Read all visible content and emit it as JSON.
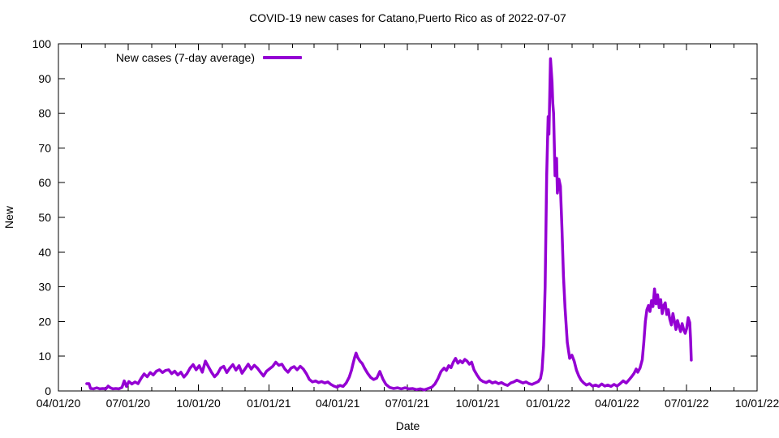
{
  "chart": {
    "title": "COVID-19 new cases for Catano,Puerto Rico as of 2022-07-07",
    "xlabel": "Date",
    "ylabel": "New",
    "legend_label": "New cases (7-day average)"
  },
  "chart_data": {
    "type": "line",
    "title": "COVID-19 new cases for Catano,Puerto Rico as of 2022-07-07",
    "xlabel": "Date",
    "ylabel": "New",
    "ylim": [
      0,
      100
    ],
    "xlim": [
      "2020-04-01",
      "2022-10-01"
    ],
    "grid": false,
    "y_ticks": [
      0,
      10,
      20,
      30,
      40,
      50,
      60,
      70,
      80,
      90,
      100
    ],
    "x_tick_labels": [
      "04/01/20",
      "07/01/20",
      "10/01/20",
      "01/01/21",
      "04/01/21",
      "07/01/21",
      "10/01/21",
      "01/01/22",
      "04/01/22",
      "07/01/22",
      "10/01/22"
    ],
    "x_minor_ticks": "monthly",
    "legend": {
      "position": "top-left",
      "entries": [
        {
          "label": "New cases (7-day average)",
          "color": "#9400D3"
        }
      ]
    },
    "series": [
      {
        "name": "New cases (7-day average)",
        "color": "#9400D3",
        "points": [
          [
            "2020-05-08",
            2.1
          ],
          [
            "2020-05-11",
            2.1
          ],
          [
            "2020-05-13",
            0.7
          ],
          [
            "2020-05-17",
            0.6
          ],
          [
            "2020-05-21",
            0.9
          ],
          [
            "2020-05-25",
            0.6
          ],
          [
            "2020-05-29",
            0.7
          ],
          [
            "2020-06-02",
            0.6
          ],
          [
            "2020-06-05",
            1.4
          ],
          [
            "2020-06-08",
            0.9
          ],
          [
            "2020-06-11",
            0.6
          ],
          [
            "2020-06-15",
            0.7
          ],
          [
            "2020-06-19",
            0.6
          ],
          [
            "2020-06-23",
            1.0
          ],
          [
            "2020-06-26",
            2.9
          ],
          [
            "2020-06-29",
            1.3
          ],
          [
            "2020-07-02",
            2.7
          ],
          [
            "2020-07-06",
            2.0
          ],
          [
            "2020-07-10",
            2.6
          ],
          [
            "2020-07-14",
            2.1
          ],
          [
            "2020-07-18",
            3.6
          ],
          [
            "2020-07-22",
            4.9
          ],
          [
            "2020-07-26",
            4.1
          ],
          [
            "2020-07-30",
            5.3
          ],
          [
            "2020-08-03",
            4.6
          ],
          [
            "2020-08-07",
            5.7
          ],
          [
            "2020-08-11",
            6.1
          ],
          [
            "2020-08-15",
            5.3
          ],
          [
            "2020-08-19",
            5.9
          ],
          [
            "2020-08-23",
            6.1
          ],
          [
            "2020-08-27",
            5.0
          ],
          [
            "2020-08-31",
            5.7
          ],
          [
            "2020-09-04",
            4.6
          ],
          [
            "2020-09-08",
            5.4
          ],
          [
            "2020-09-12",
            4.0
          ],
          [
            "2020-09-16",
            5.0
          ],
          [
            "2020-09-20",
            6.6
          ],
          [
            "2020-09-24",
            7.6
          ],
          [
            "2020-09-28",
            6.1
          ],
          [
            "2020-10-02",
            7.3
          ],
          [
            "2020-10-06",
            5.4
          ],
          [
            "2020-10-10",
            8.6
          ],
          [
            "2020-10-14",
            7.0
          ],
          [
            "2020-10-18",
            5.4
          ],
          [
            "2020-10-22",
            4.1
          ],
          [
            "2020-10-26",
            5.0
          ],
          [
            "2020-10-30",
            6.6
          ],
          [
            "2020-11-03",
            7.1
          ],
          [
            "2020-11-07",
            5.3
          ],
          [
            "2020-11-11",
            6.6
          ],
          [
            "2020-11-15",
            7.6
          ],
          [
            "2020-11-19",
            6.0
          ],
          [
            "2020-11-23",
            7.3
          ],
          [
            "2020-11-27",
            5.1
          ],
          [
            "2020-12-01",
            6.4
          ],
          [
            "2020-12-05",
            7.7
          ],
          [
            "2020-12-09",
            6.3
          ],
          [
            "2020-12-13",
            7.4
          ],
          [
            "2020-12-17",
            6.6
          ],
          [
            "2020-12-21",
            5.4
          ],
          [
            "2020-12-25",
            4.3
          ],
          [
            "2020-12-29",
            5.7
          ],
          [
            "2021-01-02",
            6.4
          ],
          [
            "2021-01-06",
            7.1
          ],
          [
            "2021-01-10",
            8.3
          ],
          [
            "2021-01-14",
            7.4
          ],
          [
            "2021-01-18",
            7.7
          ],
          [
            "2021-01-22",
            6.3
          ],
          [
            "2021-01-26",
            5.4
          ],
          [
            "2021-01-30",
            6.6
          ],
          [
            "2021-02-03",
            7.0
          ],
          [
            "2021-02-07",
            6.1
          ],
          [
            "2021-02-11",
            7.1
          ],
          [
            "2021-02-15",
            6.3
          ],
          [
            "2021-02-19",
            5.0
          ],
          [
            "2021-02-23",
            3.3
          ],
          [
            "2021-02-27",
            2.6
          ],
          [
            "2021-03-03",
            2.9
          ],
          [
            "2021-03-07",
            2.4
          ],
          [
            "2021-03-11",
            2.7
          ],
          [
            "2021-03-15",
            2.3
          ],
          [
            "2021-03-19",
            2.6
          ],
          [
            "2021-03-23",
            1.9
          ],
          [
            "2021-03-27",
            1.4
          ],
          [
            "2021-03-31",
            1.1
          ],
          [
            "2021-04-04",
            1.6
          ],
          [
            "2021-04-08",
            1.3
          ],
          [
            "2021-04-12",
            2.3
          ],
          [
            "2021-04-16",
            4.0
          ],
          [
            "2021-04-19",
            6.0
          ],
          [
            "2021-04-21",
            7.9
          ],
          [
            "2021-04-23",
            9.6
          ],
          [
            "2021-04-25",
            10.9
          ],
          [
            "2021-04-27",
            9.7
          ],
          [
            "2021-04-30",
            8.6
          ],
          [
            "2021-05-03",
            7.9
          ],
          [
            "2021-05-06",
            6.6
          ],
          [
            "2021-05-10",
            5.1
          ],
          [
            "2021-05-14",
            3.9
          ],
          [
            "2021-05-18",
            3.3
          ],
          [
            "2021-05-22",
            3.7
          ],
          [
            "2021-05-26",
            5.6
          ],
          [
            "2021-05-30",
            3.4
          ],
          [
            "2021-06-03",
            1.9
          ],
          [
            "2021-06-08",
            1.0
          ],
          [
            "2021-06-13",
            0.7
          ],
          [
            "2021-06-18",
            0.9
          ],
          [
            "2021-06-23",
            0.6
          ],
          [
            "2021-06-28",
            0.9
          ],
          [
            "2021-07-03",
            0.6
          ],
          [
            "2021-07-08",
            0.7
          ],
          [
            "2021-07-13",
            0.4
          ],
          [
            "2021-07-18",
            0.6
          ],
          [
            "2021-07-23",
            0.3
          ],
          [
            "2021-07-28",
            0.7
          ],
          [
            "2021-08-02",
            1.1
          ],
          [
            "2021-08-06",
            2.0
          ],
          [
            "2021-08-10",
            3.6
          ],
          [
            "2021-08-14",
            5.6
          ],
          [
            "2021-08-18",
            6.6
          ],
          [
            "2021-08-21",
            5.9
          ],
          [
            "2021-08-24",
            7.3
          ],
          [
            "2021-08-27",
            6.7
          ],
          [
            "2021-08-30",
            8.3
          ],
          [
            "2021-09-02",
            9.4
          ],
          [
            "2021-09-05",
            8.0
          ],
          [
            "2021-09-08",
            8.7
          ],
          [
            "2021-09-11",
            8.1
          ],
          [
            "2021-09-14",
            9.1
          ],
          [
            "2021-09-17",
            8.6
          ],
          [
            "2021-09-20",
            7.7
          ],
          [
            "2021-09-23",
            8.3
          ],
          [
            "2021-09-26",
            6.1
          ],
          [
            "2021-09-30",
            4.6
          ],
          [
            "2021-10-04",
            3.3
          ],
          [
            "2021-10-08",
            2.7
          ],
          [
            "2021-10-12",
            2.4
          ],
          [
            "2021-10-16",
            2.9
          ],
          [
            "2021-10-20",
            2.3
          ],
          [
            "2021-10-24",
            2.6
          ],
          [
            "2021-10-28",
            2.1
          ],
          [
            "2021-11-01",
            2.4
          ],
          [
            "2021-11-05",
            1.9
          ],
          [
            "2021-11-09",
            1.6
          ],
          [
            "2021-11-13",
            2.3
          ],
          [
            "2021-11-17",
            2.6
          ],
          [
            "2021-11-21",
            3.1
          ],
          [
            "2021-11-25",
            2.7
          ],
          [
            "2021-11-29",
            2.3
          ],
          [
            "2021-12-03",
            2.6
          ],
          [
            "2021-12-07",
            2.1
          ],
          [
            "2021-12-11",
            1.9
          ],
          [
            "2021-12-15",
            2.3
          ],
          [
            "2021-12-19",
            2.7
          ],
          [
            "2021-12-22",
            3.6
          ],
          [
            "2021-12-24",
            6.0
          ],
          [
            "2021-12-26",
            13.0
          ],
          [
            "2021-12-28",
            30.0
          ],
          [
            "2021-12-30",
            62.0
          ],
          [
            "2022-01-01",
            79.0
          ],
          [
            "2022-01-02",
            74.0
          ],
          [
            "2022-01-04",
            95.7
          ],
          [
            "2022-01-06",
            89.0
          ],
          [
            "2022-01-07",
            83.0
          ],
          [
            "2022-01-08",
            80.0
          ],
          [
            "2022-01-10",
            62.0
          ],
          [
            "2022-01-12",
            67.0
          ],
          [
            "2022-01-13",
            57.0
          ],
          [
            "2022-01-15",
            61.0
          ],
          [
            "2022-01-17",
            59.0
          ],
          [
            "2022-01-19",
            47.0
          ],
          [
            "2022-01-21",
            33.0
          ],
          [
            "2022-01-23",
            24.0
          ],
          [
            "2022-01-26",
            14.0
          ],
          [
            "2022-01-29",
            9.4
          ],
          [
            "2022-02-01",
            10.3
          ],
          [
            "2022-02-04",
            8.6
          ],
          [
            "2022-02-07",
            6.0
          ],
          [
            "2022-02-10",
            4.3
          ],
          [
            "2022-02-13",
            3.1
          ],
          [
            "2022-02-16",
            2.4
          ],
          [
            "2022-02-20",
            1.7
          ],
          [
            "2022-02-24",
            2.1
          ],
          [
            "2022-02-28",
            1.4
          ],
          [
            "2022-03-04",
            1.7
          ],
          [
            "2022-03-08",
            1.3
          ],
          [
            "2022-03-12",
            2.0
          ],
          [
            "2022-03-16",
            1.4
          ],
          [
            "2022-03-20",
            1.7
          ],
          [
            "2022-03-24",
            1.3
          ],
          [
            "2022-03-28",
            1.9
          ],
          [
            "2022-04-01",
            1.4
          ],
          [
            "2022-04-05",
            2.1
          ],
          [
            "2022-04-09",
            2.9
          ],
          [
            "2022-04-13",
            2.3
          ],
          [
            "2022-04-17",
            3.3
          ],
          [
            "2022-04-20",
            4.1
          ],
          [
            "2022-04-23",
            5.0
          ],
          [
            "2022-04-26",
            6.3
          ],
          [
            "2022-04-28",
            5.4
          ],
          [
            "2022-05-01",
            6.6
          ],
          [
            "2022-05-04",
            9.0
          ],
          [
            "2022-05-06",
            14.0
          ],
          [
            "2022-05-08",
            20.0
          ],
          [
            "2022-05-10",
            23.4
          ],
          [
            "2022-05-12",
            24.6
          ],
          [
            "2022-05-14",
            22.9
          ],
          [
            "2022-05-16",
            26.0
          ],
          [
            "2022-05-18",
            24.3
          ],
          [
            "2022-05-20",
            29.4
          ],
          [
            "2022-05-22",
            25.1
          ],
          [
            "2022-05-24",
            27.7
          ],
          [
            "2022-05-26",
            24.0
          ],
          [
            "2022-05-28",
            26.3
          ],
          [
            "2022-05-30",
            22.3
          ],
          [
            "2022-06-01",
            24.6
          ],
          [
            "2022-06-03",
            25.4
          ],
          [
            "2022-06-05",
            22.0
          ],
          [
            "2022-06-07",
            23.4
          ],
          [
            "2022-06-09",
            20.6
          ],
          [
            "2022-06-11",
            19.0
          ],
          [
            "2022-06-13",
            22.3
          ],
          [
            "2022-06-15",
            20.0
          ],
          [
            "2022-06-17",
            17.7
          ],
          [
            "2022-06-19",
            20.3
          ],
          [
            "2022-06-21",
            18.6
          ],
          [
            "2022-06-23",
            17.1
          ],
          [
            "2022-06-25",
            19.4
          ],
          [
            "2022-06-27",
            17.7
          ],
          [
            "2022-06-29",
            16.6
          ],
          [
            "2022-07-01",
            18.0
          ],
          [
            "2022-07-03",
            21.1
          ],
          [
            "2022-07-05",
            19.7
          ],
          [
            "2022-07-06",
            15.0
          ],
          [
            "2022-07-07",
            8.9
          ]
        ]
      }
    ]
  }
}
